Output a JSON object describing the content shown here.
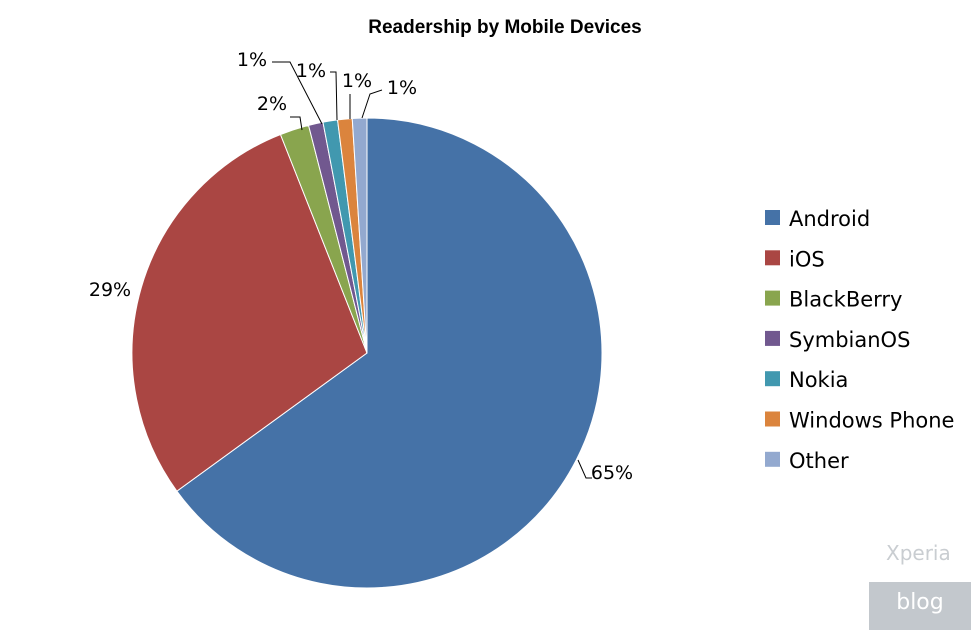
{
  "chart_data": {
    "type": "pie",
    "title": "Readership by Mobile Devices",
    "categories": [
      "Android",
      "iOS",
      "BlackBerry",
      "SymbianOS",
      "Nokia",
      "Windows Phone",
      "Other"
    ],
    "values": [
      65,
      29,
      2,
      1,
      1,
      1,
      1
    ],
    "labels": [
      "65%",
      "29%",
      "2%",
      "1%",
      "1%",
      "1%",
      "1%"
    ],
    "colors": [
      "#4572A7",
      "#AA4643",
      "#89A54E",
      "#71588F",
      "#4198AF",
      "#DB843D",
      "#93A9CF"
    ],
    "legend_position": "right"
  },
  "watermark": {
    "line1": "Xperia",
    "line2": "blog"
  }
}
